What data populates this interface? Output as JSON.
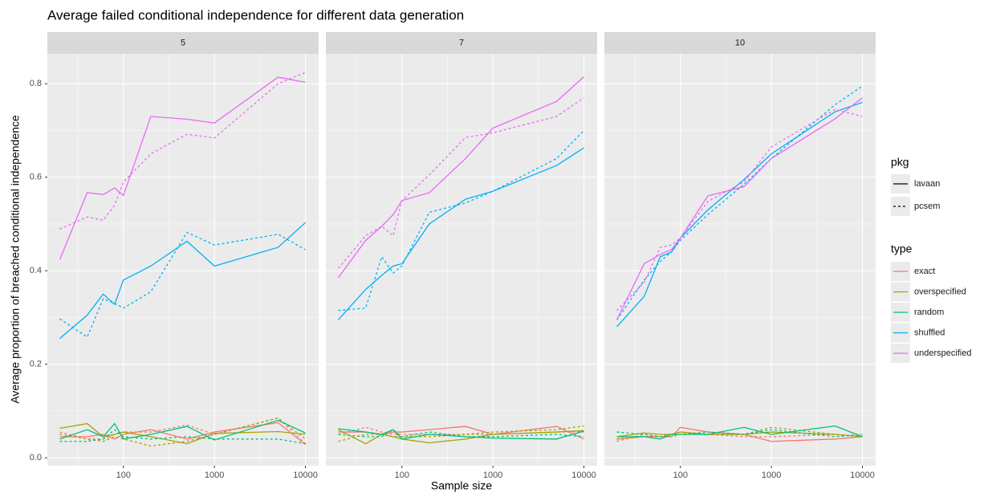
{
  "title": "Average failed conditional independence for different data generation",
  "xlabel": "Sample size",
  "ylabel": "Average proportion of breached conditional independence",
  "legends": {
    "pkg": {
      "title": "pkg",
      "items": [
        {
          "name": "lavaan",
          "dash": "solid"
        },
        {
          "name": "pcsem",
          "dash": "dashed"
        }
      ]
    },
    "type": {
      "title": "type",
      "items": [
        {
          "name": "exact",
          "color": "#F8766D"
        },
        {
          "name": "overspecified",
          "color": "#A3A500"
        },
        {
          "name": "random",
          "color": "#00BF7D"
        },
        {
          "name": "shuffled",
          "color": "#00B0F6"
        },
        {
          "name": "underspecified",
          "color": "#E76BF3"
        }
      ]
    }
  },
  "chart_data": [
    {
      "type": "line",
      "title": "5",
      "xscale": "log",
      "x": [
        20,
        40,
        60,
        80,
        100,
        200,
        500,
        1000,
        5000,
        10000
      ],
      "xlim": [
        14.6,
        13960
      ],
      "xticks": [
        100,
        1000,
        10000
      ],
      "xminor": [
        31.6,
        316.2,
        3162.3
      ],
      "ylim": [
        -0.017,
        0.864
      ],
      "yticks": [
        {
          "value": 0,
          "label": "0.0"
        },
        0.2,
        0.4,
        0.6,
        0.8
      ],
      "yminor": [
        0.1,
        0.3,
        0.5,
        0.7
      ],
      "series": [
        {
          "kind": "exact",
          "pkg": "lavaan",
          "values": [
            0.045,
            0.045,
            0.05,
            0.04,
            0.05,
            0.06,
            0.04,
            0.055,
            0.075,
            0.028
          ]
        },
        {
          "kind": "exact",
          "pkg": "pcsem",
          "values": [
            0.055,
            0.04,
            0.04,
            0.05,
            0.055,
            0.055,
            0.07,
            0.05,
            0.085,
            0.03
          ]
        },
        {
          "kind": "overspecified",
          "pkg": "lavaan",
          "values": [
            0.063,
            0.073,
            0.045,
            0.05,
            0.055,
            0.045,
            0.03,
            0.052,
            0.056,
            0.05
          ]
        },
        {
          "kind": "overspecified",
          "pkg": "pcsem",
          "values": [
            0.05,
            0.04,
            0.035,
            0.045,
            0.04,
            0.025,
            0.035,
            0.05,
            0.085,
            0.04
          ]
        },
        {
          "kind": "random",
          "pkg": "lavaan",
          "values": [
            0.04,
            0.06,
            0.045,
            0.073,
            0.04,
            0.05,
            0.067,
            0.038,
            0.08,
            0.053
          ]
        },
        {
          "kind": "random",
          "pkg": "pcsem",
          "values": [
            0.035,
            0.035,
            0.04,
            0.06,
            0.045,
            0.04,
            0.045,
            0.04,
            0.04,
            0.03
          ]
        },
        {
          "kind": "shuffled",
          "pkg": "lavaan",
          "values": [
            0.255,
            0.305,
            0.35,
            0.328,
            0.38,
            0.41,
            0.463,
            0.41,
            0.45,
            0.503
          ]
        },
        {
          "kind": "shuffled",
          "pkg": "pcsem",
          "values": [
            0.297,
            0.258,
            0.34,
            0.33,
            0.32,
            0.355,
            0.482,
            0.455,
            0.478,
            0.445
          ]
        },
        {
          "kind": "underspecified",
          "pkg": "lavaan",
          "values": [
            0.424,
            0.567,
            0.563,
            0.577,
            0.561,
            0.73,
            0.724,
            0.716,
            0.814,
            0.803
          ]
        },
        {
          "kind": "underspecified",
          "pkg": "pcsem",
          "values": [
            0.489,
            0.515,
            0.508,
            0.54,
            0.59,
            0.65,
            0.692,
            0.684,
            0.8,
            0.824
          ]
        }
      ]
    },
    {
      "type": "line",
      "title": "7",
      "xscale": "log",
      "x": [
        20,
        40,
        60,
        80,
        100,
        200,
        500,
        1000,
        5000,
        10000
      ],
      "xlim": [
        14.6,
        13960
      ],
      "xticks": [
        100,
        1000,
        10000
      ],
      "xminor": [
        31.6,
        316.2,
        3162.3
      ],
      "ylim": [
        -0.017,
        0.864
      ],
      "yticks": [
        {
          "value": 0,
          "label": "0.0"
        },
        0.2,
        0.4,
        0.6,
        0.8
      ],
      "yminor": [
        0.1,
        0.3,
        0.5,
        0.7
      ],
      "series": [
        {
          "kind": "exact",
          "pkg": "lavaan",
          "values": [
            0.055,
            0.055,
            0.05,
            0.055,
            0.055,
            0.06,
            0.067,
            0.05,
            0.067,
            0.04
          ]
        },
        {
          "kind": "exact",
          "pkg": "pcsem",
          "values": [
            0.05,
            0.065,
            0.055,
            0.05,
            0.05,
            0.05,
            0.05,
            0.05,
            0.055,
            0.055
          ]
        },
        {
          "kind": "overspecified",
          "pkg": "lavaan",
          "values": [
            0.06,
            0.03,
            0.05,
            0.045,
            0.04,
            0.032,
            0.04,
            0.05,
            0.055,
            0.058
          ]
        },
        {
          "kind": "overspecified",
          "pkg": "pcsem",
          "values": [
            0.035,
            0.05,
            0.05,
            0.045,
            0.045,
            0.045,
            0.05,
            0.055,
            0.06,
            0.068
          ]
        },
        {
          "kind": "random",
          "pkg": "lavaan",
          "values": [
            0.062,
            0.055,
            0.05,
            0.06,
            0.04,
            0.05,
            0.045,
            0.042,
            0.04,
            0.057
          ]
        },
        {
          "kind": "random",
          "pkg": "pcsem",
          "values": [
            0.05,
            0.045,
            0.045,
            0.06,
            0.045,
            0.055,
            0.045,
            0.045,
            0.05,
            0.045
          ]
        },
        {
          "kind": "shuffled",
          "pkg": "lavaan",
          "values": [
            0.295,
            0.36,
            0.39,
            0.41,
            0.415,
            0.5,
            0.553,
            0.57,
            0.625,
            0.663
          ]
        },
        {
          "kind": "shuffled",
          "pkg": "pcsem",
          "values": [
            0.315,
            0.32,
            0.43,
            0.395,
            0.41,
            0.525,
            0.545,
            0.57,
            0.64,
            0.7
          ]
        },
        {
          "kind": "underspecified",
          "pkg": "lavaan",
          "values": [
            0.385,
            0.465,
            0.495,
            0.52,
            0.55,
            0.567,
            0.64,
            0.705,
            0.762,
            0.815
          ]
        },
        {
          "kind": "underspecified",
          "pkg": "pcsem",
          "values": [
            0.405,
            0.475,
            0.495,
            0.475,
            0.55,
            0.605,
            0.685,
            0.695,
            0.73,
            0.77
          ]
        }
      ]
    },
    {
      "type": "line",
      "title": "10",
      "xscale": "log",
      "x": [
        20,
        40,
        60,
        80,
        100,
        200,
        500,
        1000,
        5000,
        10000
      ],
      "xlim": [
        14.6,
        13960
      ],
      "xticks": [
        100,
        1000,
        10000
      ],
      "xminor": [
        31.6,
        316.2,
        3162.3
      ],
      "ylim": [
        -0.017,
        0.864
      ],
      "yticks": [
        {
          "value": 0,
          "label": "0.0"
        },
        0.2,
        0.4,
        0.6,
        0.8
      ],
      "yminor": [
        0.1,
        0.3,
        0.5,
        0.7
      ],
      "series": [
        {
          "kind": "exact",
          "pkg": "lavaan",
          "values": [
            0.04,
            0.045,
            0.045,
            0.045,
            0.065,
            0.055,
            0.05,
            0.035,
            0.04,
            0.045
          ]
        },
        {
          "kind": "exact",
          "pkg": "pcsem",
          "values": [
            0.035,
            0.05,
            0.045,
            0.05,
            0.055,
            0.05,
            0.045,
            0.045,
            0.05,
            0.045
          ]
        },
        {
          "kind": "overspecified",
          "pkg": "lavaan",
          "values": [
            0.045,
            0.053,
            0.05,
            0.05,
            0.055,
            0.05,
            0.05,
            0.055,
            0.05,
            0.045
          ]
        },
        {
          "kind": "overspecified",
          "pkg": "pcsem",
          "values": [
            0.04,
            0.045,
            0.045,
            0.045,
            0.05,
            0.05,
            0.05,
            0.065,
            0.05,
            0.045
          ]
        },
        {
          "kind": "random",
          "pkg": "lavaan",
          "values": [
            0.045,
            0.045,
            0.04,
            0.05,
            0.05,
            0.05,
            0.065,
            0.05,
            0.068,
            0.045
          ]
        },
        {
          "kind": "random",
          "pkg": "pcsem",
          "values": [
            0.055,
            0.05,
            0.045,
            0.05,
            0.05,
            0.055,
            0.05,
            0.06,
            0.045,
            0.05
          ]
        },
        {
          "kind": "shuffled",
          "pkg": "lavaan",
          "values": [
            0.28,
            0.345,
            0.43,
            0.44,
            0.47,
            0.53,
            0.595,
            0.65,
            0.74,
            0.76
          ]
        },
        {
          "kind": "shuffled",
          "pkg": "pcsem",
          "values": [
            0.295,
            0.38,
            0.42,
            0.44,
            0.465,
            0.52,
            0.585,
            0.64,
            0.755,
            0.795
          ]
        },
        {
          "kind": "underspecified",
          "pkg": "lavaan",
          "values": [
            0.295,
            0.415,
            0.435,
            0.445,
            0.47,
            0.56,
            0.58,
            0.64,
            0.725,
            0.77
          ]
        },
        {
          "kind": "underspecified",
          "pkg": "pcsem",
          "values": [
            0.315,
            0.375,
            0.45,
            0.455,
            0.47,
            0.548,
            0.59,
            0.665,
            0.745,
            0.73
          ]
        }
      ]
    }
  ]
}
